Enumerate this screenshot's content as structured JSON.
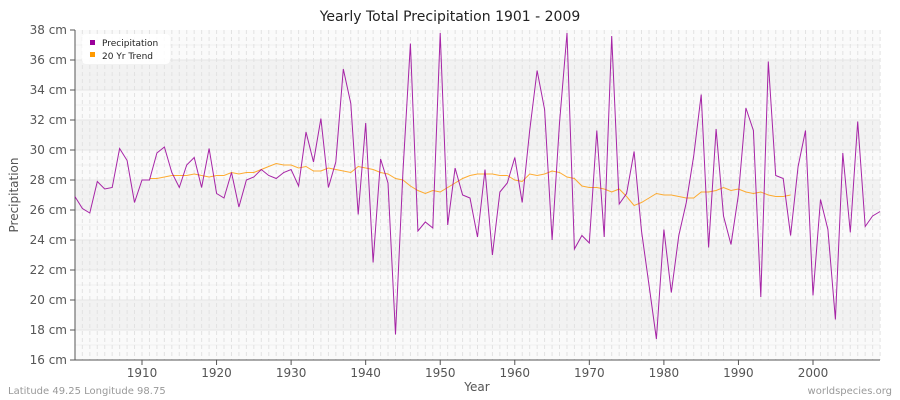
{
  "chart_data": {
    "type": "line",
    "title": "Yearly Total Precipitation 1901 - 2009",
    "xlabel": "Year",
    "ylabel": "Precipitation",
    "ylim": [
      16,
      38
    ],
    "xlim": [
      1901,
      2009
    ],
    "y_ticks": [
      "16 cm",
      "18 cm",
      "20 cm",
      "22 cm",
      "24 cm",
      "26 cm",
      "28 cm",
      "30 cm",
      "32 cm",
      "34 cm",
      "36 cm",
      "38 cm"
    ],
    "x_ticks": [
      "1910",
      "1920",
      "1930",
      "1940",
      "1950",
      "1960",
      "1970",
      "1980",
      "1990",
      "2000"
    ],
    "grid": true,
    "legend_position": "top-left",
    "series": [
      {
        "name": "Precipitation",
        "color": "#990099",
        "start_year": 1901,
        "values": [
          26.9,
          26.1,
          25.8,
          27.9,
          27.4,
          27.5,
          30.1,
          29.3,
          26.5,
          28.0,
          28.0,
          29.8,
          30.2,
          28.5,
          27.5,
          29.0,
          29.5,
          27.5,
          30.1,
          27.1,
          26.8,
          28.5,
          26.2,
          28.0,
          28.2,
          28.7,
          28.3,
          28.1,
          28.5,
          28.7,
          27.6,
          31.2,
          29.2,
          32.1,
          27.5,
          29.2,
          35.4,
          33.1,
          25.7,
          31.8,
          22.5,
          29.4,
          27.8,
          17.7,
          28.5,
          37.1,
          24.6,
          25.2,
          24.8,
          37.8,
          25.0,
          28.8,
          27.0,
          26.8,
          24.2,
          28.7,
          23.0,
          27.2,
          27.8,
          29.5,
          26.5,
          31.3,
          35.3,
          32.7,
          24.0,
          31.8,
          37.8,
          23.4,
          24.3,
          23.8,
          31.3,
          24.2,
          37.6,
          26.4,
          27.1,
          29.9,
          24.6,
          21.0,
          17.4,
          24.7,
          20.5,
          24.3,
          26.5,
          29.6,
          33.7,
          23.5,
          31.4,
          25.6,
          23.7,
          27.0,
          32.8,
          31.3,
          20.2,
          35.9,
          28.3,
          28.1,
          24.3,
          28.9,
          31.3,
          20.3,
          26.7,
          24.7,
          18.7,
          29.8,
          24.5,
          31.9,
          24.9,
          25.6,
          25.9
        ]
      },
      {
        "name": "20 Yr Trend",
        "color": "#ff9900",
        "start_year": 1911,
        "values": [
          28.1,
          28.1,
          28.2,
          28.3,
          28.3,
          28.3,
          28.4,
          28.3,
          28.2,
          28.3,
          28.3,
          28.5,
          28.4,
          28.5,
          28.5,
          28.7,
          28.9,
          29.1,
          29.0,
          29.0,
          28.8,
          28.9,
          28.6,
          28.6,
          28.8,
          28.7,
          28.6,
          28.5,
          28.9,
          28.8,
          28.7,
          28.5,
          28.4,
          28.1,
          28.0,
          27.6,
          27.3,
          27.1,
          27.3,
          27.2,
          27.5,
          27.8,
          28.1,
          28.3,
          28.4,
          28.4,
          28.4,
          28.3,
          28.3,
          28.0,
          27.9,
          28.4,
          28.3,
          28.4,
          28.6,
          28.5,
          28.2,
          28.1,
          27.6,
          27.5,
          27.5,
          27.4,
          27.2,
          27.4,
          26.9,
          26.3,
          26.5,
          26.8,
          27.1,
          27.0,
          27.0,
          26.9,
          26.8,
          26.8,
          27.2,
          27.2,
          27.3,
          27.5,
          27.3,
          27.4,
          27.2,
          27.1,
          27.2,
          27.0,
          26.9,
          26.9,
          27.0
        ]
      }
    ]
  },
  "footer": {
    "left": "Latitude 49.25 Longitude 98.75",
    "right": "worldspecies.org"
  }
}
